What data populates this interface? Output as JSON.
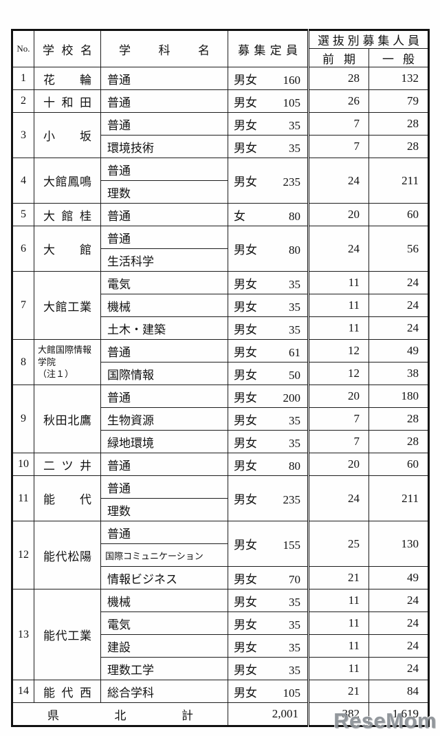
{
  "table": {
    "header": {
      "no": "No.",
      "school": "学校名",
      "dept": "学科名",
      "quota": "募集定員",
      "selection": "選抜別募集人員",
      "zenki": "前期",
      "ippan": "一般"
    },
    "schools": [
      {
        "no": "1",
        "name": "花輪",
        "groups": [
          {
            "depts": [
              "普通"
            ],
            "gender": "男女",
            "quota": "160",
            "zenki": "28",
            "ippan": "132"
          }
        ]
      },
      {
        "no": "2",
        "name": "十和田",
        "groups": [
          {
            "depts": [
              "普通"
            ],
            "gender": "男女",
            "quota": "105",
            "zenki": "26",
            "ippan": "79"
          }
        ]
      },
      {
        "no": "3",
        "name": "小坂",
        "groups": [
          {
            "depts": [
              "普通"
            ],
            "gender": "男女",
            "quota": "35",
            "zenki": "7",
            "ippan": "28"
          },
          {
            "depts": [
              "環境技術"
            ],
            "gender": "男女",
            "quota": "35",
            "zenki": "7",
            "ippan": "28"
          }
        ]
      },
      {
        "no": "4",
        "name": "大館鳳鳴",
        "groups": [
          {
            "depts": [
              "普通",
              "理数"
            ],
            "gender": "男女",
            "quota": "235",
            "zenki": "24",
            "ippan": "211"
          }
        ]
      },
      {
        "no": "5",
        "name": "大館桂",
        "groups": [
          {
            "depts": [
              "普通"
            ],
            "gender": "女",
            "quota": "80",
            "zenki": "20",
            "ippan": "60"
          }
        ]
      },
      {
        "no": "6",
        "name": "大館",
        "groups": [
          {
            "depts": [
              "普通",
              "生活科学"
            ],
            "gender": "男女",
            "quota": "80",
            "zenki": "24",
            "ippan": "56"
          }
        ]
      },
      {
        "no": "7",
        "name": "大館工業",
        "groups": [
          {
            "depts": [
              "電気"
            ],
            "gender": "男女",
            "quota": "35",
            "zenki": "11",
            "ippan": "24"
          },
          {
            "depts": [
              "機械"
            ],
            "gender": "男女",
            "quota": "35",
            "zenki": "11",
            "ippan": "24"
          },
          {
            "depts": [
              "土木・建築"
            ],
            "gender": "男女",
            "quota": "35",
            "zenki": "11",
            "ippan": "24"
          }
        ]
      },
      {
        "no": "8",
        "name": "大館国際情報学院",
        "note": "（注１）",
        "groups": [
          {
            "depts": [
              "普通"
            ],
            "gender": "男女",
            "quota": "61",
            "zenki": "12",
            "ippan": "49"
          },
          {
            "depts": [
              "国際情報"
            ],
            "gender": "男女",
            "quota": "50",
            "zenki": "12",
            "ippan": "38"
          }
        ]
      },
      {
        "no": "9",
        "name": "秋田北鷹",
        "groups": [
          {
            "depts": [
              "普通"
            ],
            "gender": "男女",
            "quota": "200",
            "zenki": "20",
            "ippan": "180"
          },
          {
            "depts": [
              "生物資源"
            ],
            "gender": "男女",
            "quota": "35",
            "zenki": "7",
            "ippan": "28"
          },
          {
            "depts": [
              "緑地環境"
            ],
            "gender": "男女",
            "quota": "35",
            "zenki": "7",
            "ippan": "28"
          }
        ]
      },
      {
        "no": "10",
        "name": "二ツ井",
        "groups": [
          {
            "depts": [
              "普通"
            ],
            "gender": "男女",
            "quota": "80",
            "zenki": "20",
            "ippan": "60"
          }
        ]
      },
      {
        "no": "11",
        "name": "能代",
        "groups": [
          {
            "depts": [
              "普通",
              "理数"
            ],
            "gender": "男女",
            "quota": "235",
            "zenki": "24",
            "ippan": "211"
          }
        ]
      },
      {
        "no": "12",
        "name": "能代松陽",
        "groups": [
          {
            "depts": [
              "普通",
              "国際コミュニケーション"
            ],
            "gender": "男女",
            "quota": "155",
            "zenki": "25",
            "ippan": "130"
          },
          {
            "depts": [
              "情報ビジネス"
            ],
            "gender": "男女",
            "quota": "70",
            "zenki": "21",
            "ippan": "49"
          }
        ]
      },
      {
        "no": "13",
        "name": "能代工業",
        "groups": [
          {
            "depts": [
              "機械"
            ],
            "gender": "男女",
            "quota": "35",
            "zenki": "11",
            "ippan": "24"
          },
          {
            "depts": [
              "電気"
            ],
            "gender": "男女",
            "quota": "35",
            "zenki": "11",
            "ippan": "24"
          },
          {
            "depts": [
              "建設"
            ],
            "gender": "男女",
            "quota": "35",
            "zenki": "11",
            "ippan": "24"
          },
          {
            "depts": [
              "理数工学"
            ],
            "gender": "男女",
            "quota": "35",
            "zenki": "11",
            "ippan": "24"
          }
        ]
      },
      {
        "no": "14",
        "name": "能代西",
        "groups": [
          {
            "depts": [
              "総合学科"
            ],
            "gender": "男女",
            "quota": "105",
            "zenki": "21",
            "ippan": "84"
          }
        ]
      }
    ],
    "footer": {
      "label": "県北計",
      "quota": "2,001",
      "zenki": "382",
      "ippan": "1,619"
    }
  },
  "watermark": {
    "text": "ReseMom"
  }
}
